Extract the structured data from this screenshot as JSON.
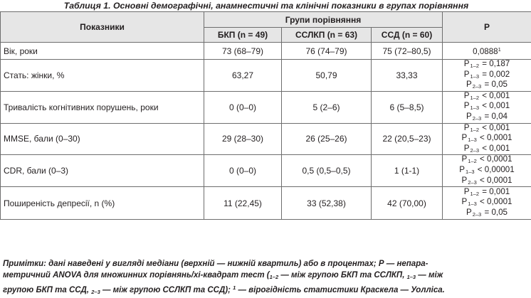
{
  "caption": "Таблиця 1. Основні демографічні, анамнестичні та клінічні показники в групах порівняння",
  "header": {
    "indicators": "Показники",
    "groups": "Групи порівняння",
    "p": "Р",
    "col1": "БКП (n = 49)",
    "col2": "ССЛКП (n = 63)",
    "col3": "ССД (n = 60)"
  },
  "rows": [
    {
      "label": "Вік, роки",
      "c1": "73 (68–79)",
      "c2": "76 (74–79)",
      "c3": "75 (72–80,5)",
      "p": [
        {
          "pre": "0,0888",
          "sub": "",
          "post": "",
          "sup": "1"
        }
      ]
    },
    {
      "label": "Стать: жінки, %",
      "c1": "63,27",
      "c2": "50,79",
      "c3": "33,33",
      "p": [
        {
          "pre": "Р",
          "sub": "1–2",
          "post": "= 0,187",
          "sup": ""
        },
        {
          "pre": "Р",
          "sub": "1–3",
          "post": "= 0,002",
          "sup": ""
        },
        {
          "pre": "Р",
          "sub": "2–3",
          "post": "= 0,05",
          "sup": ""
        }
      ]
    },
    {
      "label": "Тривалість когнітивних порушень, роки",
      "c1": "0 (0–0)",
      "c2": "5 (2–6)",
      "c3": "6 (5–8,5)",
      "p": [
        {
          "pre": "Р",
          "sub": "1–2",
          "post": "< 0,001",
          "sup": ""
        },
        {
          "pre": "Р",
          "sub": "1–3",
          "post": "< 0,001",
          "sup": ""
        },
        {
          "pre": "Р",
          "sub": "2–3",
          "post": "= 0,04",
          "sup": ""
        }
      ]
    },
    {
      "label": "MMSE, бали (0–30)",
      "c1": "29 (28–30)",
      "c2": "26 (25–26)",
      "c3": "22 (20,5–23)",
      "p": [
        {
          "pre": "Р",
          "sub": "1–2",
          "post": "< 0,001",
          "sup": ""
        },
        {
          "pre": "Р",
          "sub": "1–3",
          "post": "< 0,0001",
          "sup": ""
        },
        {
          "pre": "Р",
          "sub": "2–3",
          "post": "< 0,001",
          "sup": ""
        }
      ]
    },
    {
      "label": "CDR, бали (0–3)",
      "c1": "0 (0–0)",
      "c2": "0,5 (0,5–0,5)",
      "c3": "1 (1-1)",
      "p": [
        {
          "pre": "Р",
          "sub": "1–2",
          "post": "< 0,0001",
          "sup": ""
        },
        {
          "pre": "Р",
          "sub": "1–3",
          "post": "< 0,00001",
          "sup": ""
        },
        {
          "pre": "Р",
          "sub": "2–3",
          "post": "< 0,0001",
          "sup": ""
        }
      ]
    },
    {
      "label": "Поширеність депресії, n (%)",
      "c1": "11 (22,45)",
      "c2": "33 (52,38)",
      "c3": "42 (70,00)",
      "p": [
        {
          "pre": "Р",
          "sub": "1–2",
          "post": "= 0,001",
          "sup": ""
        },
        {
          "pre": "Р",
          "sub": "1–3",
          "post": "< 0,0001",
          "sup": ""
        },
        {
          "pre": "Р",
          "sub": "2–3",
          "post": "= 0,05",
          "sup": ""
        }
      ]
    }
  ],
  "notes": {
    "line1": "Примітки: дані наведені у вигляді медіани (верхній — нижній квартиль) або в процентах; Р — непара-",
    "line2_a": "метричний ANOVA для множинних порівнянь/хі-квадрат тест (",
    "sub_12": "1–2",
    "line2_b": " — між групою БКП та ССЛКП, ",
    "sub_13": "1–3",
    "line2_c": " — між",
    "line3_a": "групою БКП та ССД, ",
    "sub_23": "2–3",
    "line3_b": " — між групою ССЛКП та ССД); ",
    "sup_1": "1",
    "line3_c": " — вірогідність статистики Краскела — Уолліса."
  }
}
